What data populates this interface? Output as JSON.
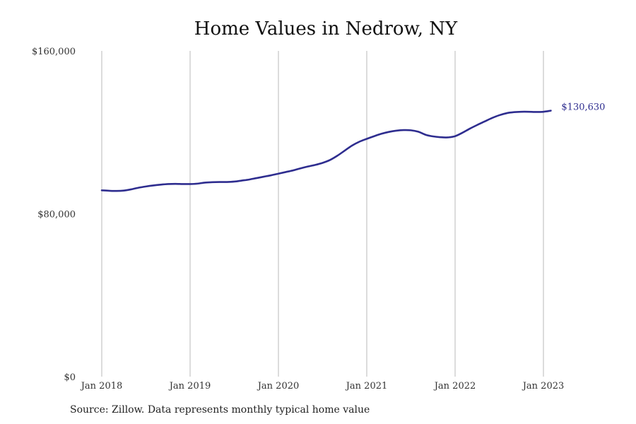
{
  "chart_data": {
    "type": "line",
    "title": "Home Values in Nedrow, NY",
    "xlabel": "",
    "ylabel": "",
    "x_ticks": [
      "Jan 2018",
      "Jan 2019",
      "Jan 2020",
      "Jan 2021",
      "Jan 2022",
      "Jan 2023"
    ],
    "y_ticks": [
      "$0",
      "$80,000",
      "$160,000"
    ],
    "y_tick_values": [
      0,
      80000,
      160000
    ],
    "ylim": [
      0,
      160000
    ],
    "xlim": [
      "2018-01",
      "2023-02"
    ],
    "grid": "vertical",
    "series": [
      {
        "color": "#2e2d8f",
        "x": [
          "2018-01",
          "2018-02",
          "2018-03",
          "2018-04",
          "2018-05",
          "2018-06",
          "2018-07",
          "2018-08",
          "2018-09",
          "2018-10",
          "2018-11",
          "2018-12",
          "2019-01",
          "2019-02",
          "2019-03",
          "2019-04",
          "2019-05",
          "2019-06",
          "2019-07",
          "2019-08",
          "2019-09",
          "2019-10",
          "2019-11",
          "2019-12",
          "2020-01",
          "2020-02",
          "2020-03",
          "2020-04",
          "2020-05",
          "2020-06",
          "2020-07",
          "2020-08",
          "2020-09",
          "2020-10",
          "2020-11",
          "2020-12",
          "2021-01",
          "2021-02",
          "2021-03",
          "2021-04",
          "2021-05",
          "2021-06",
          "2021-07",
          "2021-08",
          "2021-09",
          "2021-10",
          "2021-11",
          "2021-12",
          "2022-01",
          "2022-02",
          "2022-03",
          "2022-04",
          "2022-05",
          "2022-06",
          "2022-07",
          "2022-08",
          "2022-09",
          "2022-10",
          "2022-11",
          "2022-12",
          "2023-01",
          "2023-02"
        ],
        "values": [
          91500,
          91300,
          91200,
          91400,
          92000,
          92800,
          93400,
          93900,
          94300,
          94600,
          94700,
          94600,
          94600,
          94800,
          95300,
          95500,
          95600,
          95600,
          95800,
          96300,
          96800,
          97500,
          98200,
          98900,
          99700,
          100500,
          101300,
          102300,
          103200,
          104000,
          105000,
          106400,
          108500,
          111000,
          113500,
          115400,
          116800,
          118100,
          119300,
          120200,
          120800,
          121100,
          121000,
          120300,
          118800,
          118000,
          117600,
          117500,
          118100,
          119800,
          121800,
          123600,
          125300,
          127000,
          128400,
          129400,
          129900,
          130100,
          130100,
          130000,
          130100,
          130630
        ],
        "end_label": "$130,630"
      }
    ]
  },
  "footer": {
    "source": "Source: Zillow. Data represents monthly typical home value"
  }
}
